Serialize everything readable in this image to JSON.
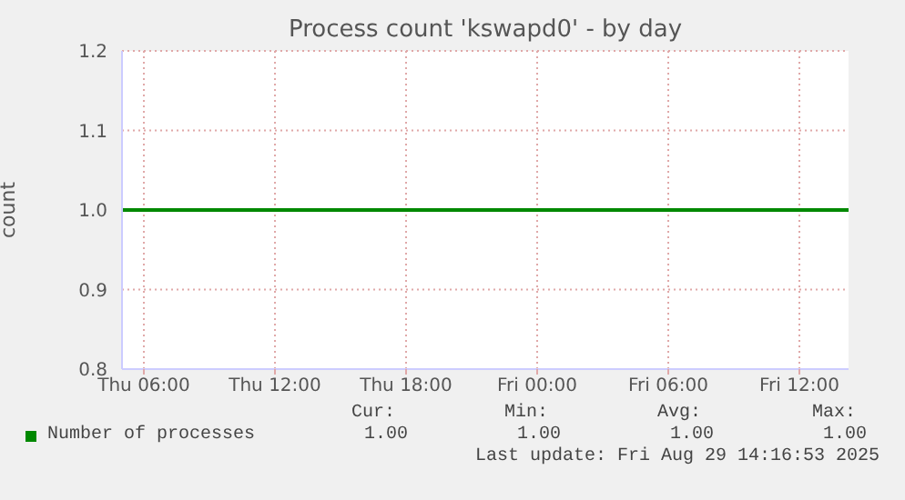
{
  "chart_data": {
    "type": "line",
    "title": "Process count 'kswapd0' - by day",
    "ylabel": "count",
    "x": [
      "2025-08-28T05:00",
      "2025-08-29T14:15"
    ],
    "series": [
      {
        "name": "Number of processes",
        "color": "#008800",
        "values": [
          1.0,
          1.0
        ]
      }
    ],
    "xlim": [
      "2025-08-28T05:00",
      "2025-08-29T14:15"
    ],
    "xticks": [
      {
        "value": "2025-08-28T06:00",
        "label": "Thu 06:00"
      },
      {
        "value": "2025-08-28T12:00",
        "label": "Thu 12:00"
      },
      {
        "value": "2025-08-28T18:00",
        "label": "Thu 18:00"
      },
      {
        "value": "2025-08-29T00:00",
        "label": "Fri 00:00"
      },
      {
        "value": "2025-08-29T06:00",
        "label": "Fri 06:00"
      },
      {
        "value": "2025-08-29T12:00",
        "label": "Fri 12:00"
      }
    ],
    "ylim": [
      0.8,
      1.2
    ],
    "yticks": [
      {
        "value": 0.8,
        "label": "0.8"
      },
      {
        "value": 0.9,
        "label": "0.9"
      },
      {
        "value": 1.0,
        "label": "1.0"
      },
      {
        "value": 1.1,
        "label": "1.1"
      },
      {
        "value": 1.2,
        "label": "1.2"
      }
    ],
    "grid": true,
    "legend": "bottom",
    "line_style": "solid",
    "marker": "none",
    "annotations": [
      "Cur:",
      "Min:",
      "Avg:",
      "Max:",
      "1.00",
      "1.00",
      "1.00",
      "1.00",
      "Last update: Fri Aug 29 14:16:53 2025"
    ]
  }
}
